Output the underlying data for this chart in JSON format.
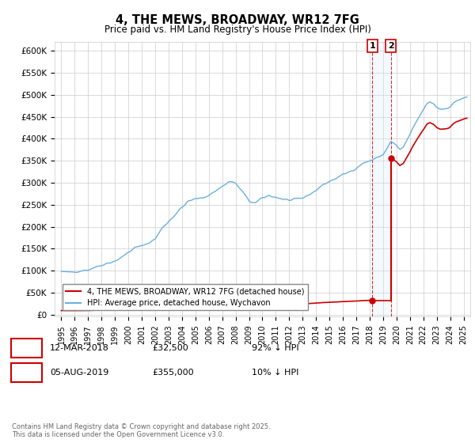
{
  "title": "4, THE MEWS, BROADWAY, WR12 7FG",
  "subtitle": "Price paid vs. HM Land Registry's House Price Index (HPI)",
  "xlim": [
    1994.5,
    2025.5
  ],
  "ylim": [
    -5000,
    620000
  ],
  "yticks": [
    0,
    50000,
    100000,
    150000,
    200000,
    250000,
    300000,
    350000,
    400000,
    450000,
    500000,
    550000,
    600000
  ],
  "ytick_labels": [
    "£0",
    "£50K",
    "£100K",
    "£150K",
    "£200K",
    "£250K",
    "£300K",
    "£350K",
    "£400K",
    "£450K",
    "£500K",
    "£550K",
    "£600K"
  ],
  "xticks": [
    1995,
    1996,
    1997,
    1998,
    1999,
    2000,
    2001,
    2002,
    2003,
    2004,
    2005,
    2006,
    2007,
    2008,
    2009,
    2010,
    2011,
    2012,
    2013,
    2014,
    2015,
    2016,
    2017,
    2018,
    2019,
    2020,
    2021,
    2022,
    2023,
    2024,
    2025
  ],
  "hpi_color": "#6ab0de",
  "sale_color": "#cc0000",
  "shade_color": "#d0e8f5",
  "legend_label_red": "4, THE MEWS, BROADWAY, WR12 7FG (detached house)",
  "legend_label_blue": "HPI: Average price, detached house, Wychavon",
  "sale1_year": 2018.19,
  "sale1_price": 32500,
  "sale2_year": 2019.58,
  "sale2_price": 355000,
  "footnote": "Contains HM Land Registry data © Crown copyright and database right 2025.\nThis data is licensed under the Open Government Licence v3.0.",
  "bg_color": "#ffffff",
  "grid_color": "#cccccc",
  "sale1_row": "12-MAR-2018",
  "sale1_amt": "£32,500",
  "sale1_pct": "92% ↓ HPI",
  "sale2_row": "05-AUG-2019",
  "sale2_amt": "£355,000",
  "sale2_pct": "10% ↓ HPI"
}
